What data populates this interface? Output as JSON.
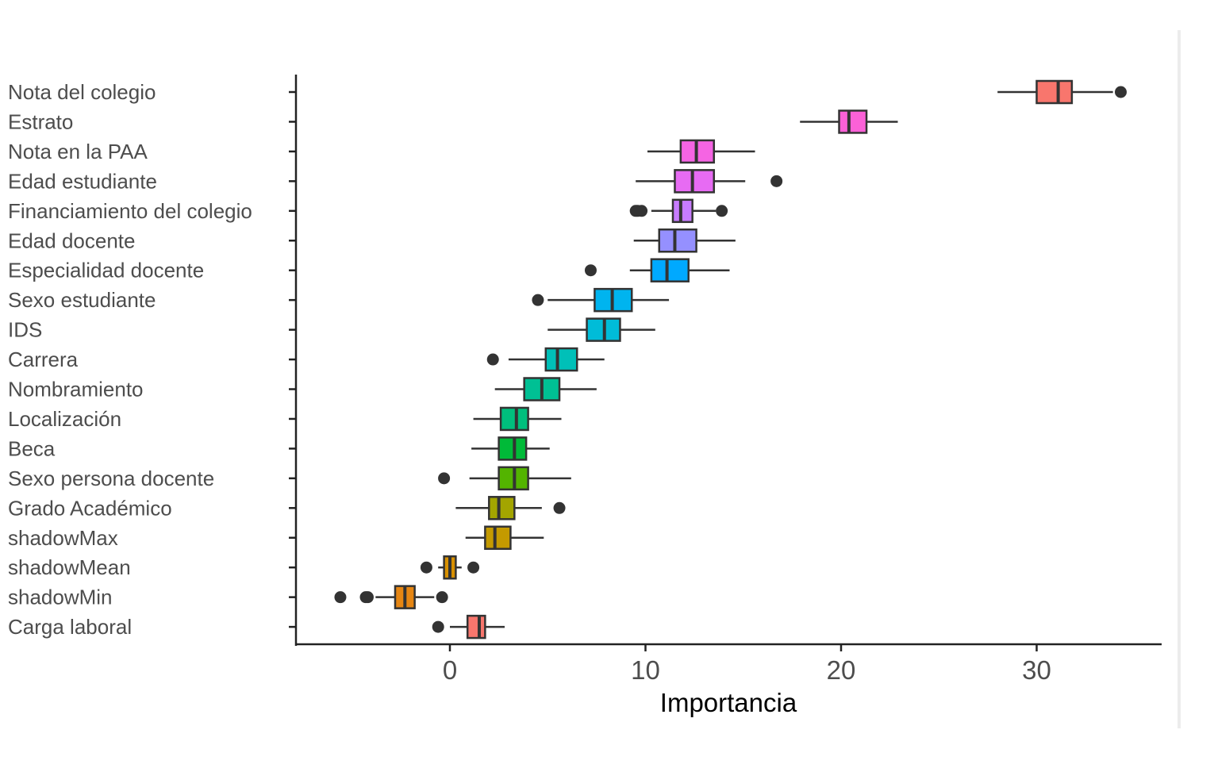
{
  "chart_data": {
    "type": "boxplot",
    "orientation": "horizontal",
    "title": "",
    "xlabel": "Importancia",
    "ylabel": "",
    "xlim": [
      -8,
      36
    ],
    "xticks": [
      0,
      10,
      20,
      30
    ],
    "xtick_labels": [
      "0",
      "10",
      "20",
      "30"
    ],
    "grid": false,
    "legend": "none",
    "categories": [
      "Nota del colegio",
      "Estrato",
      "Nota en la PAA",
      "Edad estudiante",
      "Financiamiento del colegio",
      "Edad docente",
      "Especialidad docente",
      "Sexo estudiante",
      "IDS",
      "Carrera",
      "Nombramiento",
      "Localización",
      "Beca",
      "Sexo persona docente",
      "Grado Académico",
      "shadowMax",
      "shadowMean",
      "shadowMin",
      "Carga laboral"
    ],
    "boxes": [
      {
        "min": 28.0,
        "q1": 30.0,
        "median": 31.1,
        "q3": 31.8,
        "max": 33.9,
        "outliers": [
          34.3
        ],
        "color": "#f8766d"
      },
      {
        "min": 17.9,
        "q1": 19.9,
        "median": 20.4,
        "q3": 21.3,
        "max": 22.9,
        "outliers": [],
        "color": "#fb61d7"
      },
      {
        "min": 10.1,
        "q1": 11.8,
        "median": 12.6,
        "q3": 13.5,
        "max": 15.6,
        "outliers": [],
        "color": "#f564e3"
      },
      {
        "min": 9.5,
        "q1": 11.5,
        "median": 12.4,
        "q3": 13.5,
        "max": 15.1,
        "outliers": [
          16.7
        ],
        "color": "#e76bf3"
      },
      {
        "min": 10.3,
        "q1": 11.4,
        "median": 11.8,
        "q3": 12.4,
        "max": 13.6,
        "outliers": [
          9.5,
          9.6,
          9.8,
          13.9
        ],
        "color": "#c77cff"
      },
      {
        "min": 9.4,
        "q1": 10.7,
        "median": 11.5,
        "q3": 12.6,
        "max": 14.6,
        "outliers": [],
        "color": "#9590ff"
      },
      {
        "min": 9.2,
        "q1": 10.3,
        "median": 11.1,
        "q3": 12.2,
        "max": 14.3,
        "outliers": [
          7.2
        ],
        "color": "#00a9ff"
      },
      {
        "min": 5.0,
        "q1": 7.4,
        "median": 8.3,
        "q3": 9.3,
        "max": 11.2,
        "outliers": [
          4.5
        ],
        "color": "#00b4ef"
      },
      {
        "min": 5.0,
        "q1": 7.0,
        "median": 7.9,
        "q3": 8.7,
        "max": 10.5,
        "outliers": [],
        "color": "#00bcd8"
      },
      {
        "min": 3.0,
        "q1": 4.9,
        "median": 5.5,
        "q3": 6.5,
        "max": 7.9,
        "outliers": [
          2.2
        ],
        "color": "#00c0b8"
      },
      {
        "min": 2.3,
        "q1": 3.8,
        "median": 4.7,
        "q3": 5.6,
        "max": 7.5,
        "outliers": [],
        "color": "#00c094"
      },
      {
        "min": 1.2,
        "q1": 2.6,
        "median": 3.4,
        "q3": 4.0,
        "max": 5.7,
        "outliers": [],
        "color": "#00bf7d"
      },
      {
        "min": 1.1,
        "q1": 2.5,
        "median": 3.3,
        "q3": 3.9,
        "max": 5.1,
        "outliers": [],
        "color": "#00ba38"
      },
      {
        "min": 1.0,
        "q1": 2.5,
        "median": 3.3,
        "q3": 4.0,
        "max": 6.2,
        "outliers": [
          -0.3
        ],
        "color": "#53b400"
      },
      {
        "min": 0.3,
        "q1": 2.0,
        "median": 2.5,
        "q3": 3.3,
        "max": 4.7,
        "outliers": [
          5.6
        ],
        "color": "#a3a500"
      },
      {
        "min": 0.8,
        "q1": 1.8,
        "median": 2.3,
        "q3": 3.1,
        "max": 4.8,
        "outliers": [],
        "color": "#c49a00"
      },
      {
        "min": -0.6,
        "q1": -0.3,
        "median": 0.0,
        "q3": 0.3,
        "max": 0.6,
        "outliers": [
          -1.2,
          1.2
        ],
        "color": "#d89000"
      },
      {
        "min": -3.8,
        "q1": -2.8,
        "median": -2.3,
        "q3": -1.8,
        "max": -0.8,
        "outliers": [
          -5.6,
          -4.3,
          -4.2,
          -0.4
        ],
        "color": "#e68613"
      },
      {
        "min": 0.0,
        "q1": 0.9,
        "median": 1.5,
        "q3": 1.8,
        "max": 2.8,
        "outliers": [
          -0.6
        ],
        "color": "#f8766d"
      }
    ]
  }
}
